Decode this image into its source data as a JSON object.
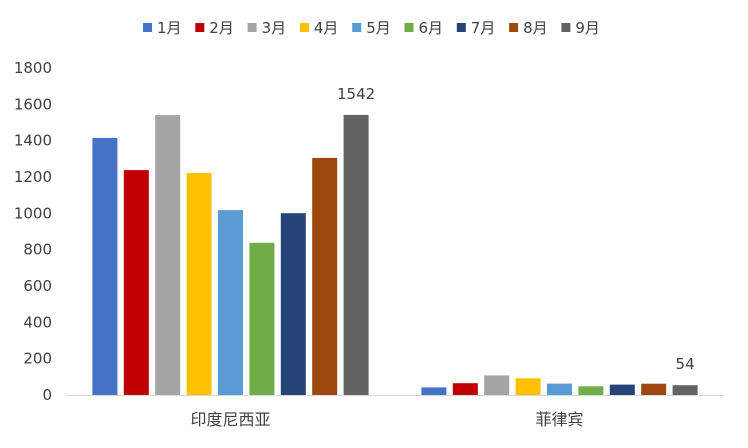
{
  "chart_data": {
    "type": "bar",
    "categories": [
      "印度尼西亚",
      "菲律宾"
    ],
    "series": [
      {
        "name": "1月",
        "color": "#4472C4",
        "values": [
          1415,
          42
        ]
      },
      {
        "name": "2月",
        "color": "#C00000",
        "values": [
          1238,
          65
        ]
      },
      {
        "name": "3月",
        "color": "#A5A5A5",
        "values": [
          1541,
          108
        ]
      },
      {
        "name": "4月",
        "color": "#FFC000",
        "values": [
          1222,
          92
        ]
      },
      {
        "name": "5月",
        "color": "#5B9BD5",
        "values": [
          1018,
          63
        ]
      },
      {
        "name": "6月",
        "color": "#70AD47",
        "values": [
          838,
          48
        ]
      },
      {
        "name": "7月",
        "color": "#264478",
        "values": [
          1001,
          57
        ]
      },
      {
        "name": "8月",
        "color": "#9E480E",
        "values": [
          1305,
          62
        ]
      },
      {
        "name": "9月",
        "color": "#636363",
        "values": [
          1542,
          54
        ]
      }
    ],
    "data_labels": [
      {
        "series": "9月",
        "category": "印度尼西亚",
        "text": "1542"
      },
      {
        "series": "9月",
        "category": "菲律宾",
        "text": "54"
      }
    ],
    "y_ticks": [
      "0",
      "200",
      "400",
      "600",
      "800",
      "1000",
      "1200",
      "1400",
      "1600",
      "1800"
    ],
    "ylim": [
      0,
      1800
    ],
    "title": "",
    "xlabel": "",
    "ylabel": "",
    "grid": false,
    "legend_position": "top"
  }
}
